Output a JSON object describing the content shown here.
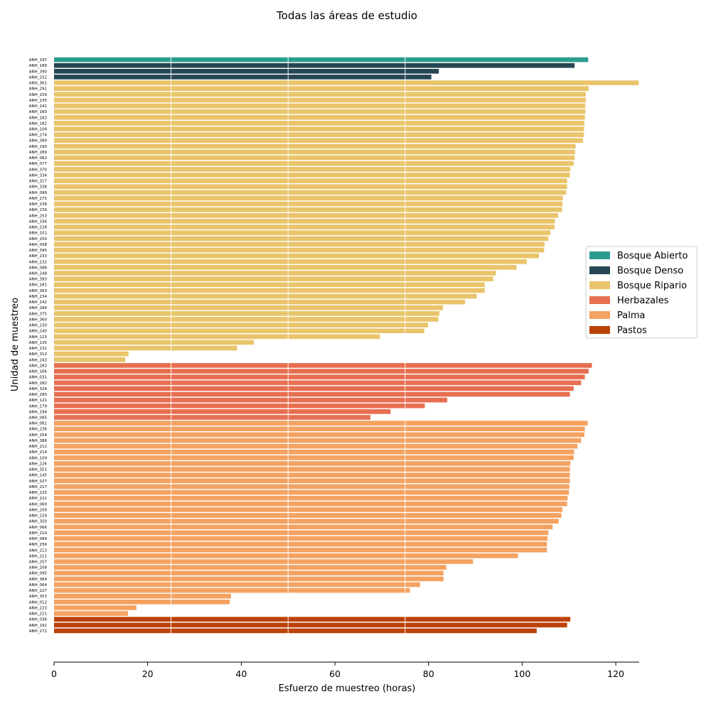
{
  "chart_data": {
    "type": "bar",
    "orientation": "horizontal",
    "title": "Todas las áreas de estudio",
    "xlabel": "Esfuerzo de muestreo (horas)",
    "ylabel": "Unidad de muestreo",
    "xlim": [
      0,
      125
    ],
    "xticks": [
      0,
      20,
      40,
      60,
      80,
      100,
      120
    ],
    "gridlines_x": [
      25,
      50,
      75
    ],
    "legend_position": "right",
    "groups": [
      {
        "name": "Bosque Abierto",
        "color": "#2a9d8f"
      },
      {
        "name": "Bosque Denso",
        "color": "#264653"
      },
      {
        "name": "Bosque Ripario",
        "color": "#e9c46a"
      },
      {
        "name": "Herbazales",
        "color": "#e76f51"
      },
      {
        "name": "Palma",
        "color": "#f4a261"
      },
      {
        "name": "Pastos",
        "color": "#bc4208"
      }
    ],
    "bars": [
      {
        "label": "ANH_197",
        "value": 114.1,
        "group": 0
      },
      {
        "label": "ANH_189",
        "value": 111.2,
        "group": 1
      },
      {
        "label": "ANH_390",
        "value": 82.2,
        "group": 1
      },
      {
        "label": "ANH_252",
        "value": 80.6,
        "group": 1
      },
      {
        "label": "ANH_361",
        "value": 124.9,
        "group": 2
      },
      {
        "label": "ANH_291",
        "value": 114.2,
        "group": 2
      },
      {
        "label": "ANH_159",
        "value": 113.6,
        "group": 2
      },
      {
        "label": "ANH_235",
        "value": 113.6,
        "group": 2
      },
      {
        "label": "ANH_241",
        "value": 113.5,
        "group": 2
      },
      {
        "label": "ANH_160",
        "value": 113.5,
        "group": 2
      },
      {
        "label": "ANH_183",
        "value": 113.4,
        "group": 2
      },
      {
        "label": "ANH_182",
        "value": 113.3,
        "group": 2
      },
      {
        "label": "ANH_106",
        "value": 113.2,
        "group": 2
      },
      {
        "label": "ANH_274",
        "value": 113.2,
        "group": 2
      },
      {
        "label": "ANH_389",
        "value": 113.0,
        "group": 2
      },
      {
        "label": "ANH_290",
        "value": 111.4,
        "group": 2
      },
      {
        "label": "ANH_289",
        "value": 111.3,
        "group": 2
      },
      {
        "label": "ANH_062",
        "value": 111.2,
        "group": 2
      },
      {
        "label": "ANH_077",
        "value": 111.0,
        "group": 2
      },
      {
        "label": "ANH_370",
        "value": 110.3,
        "group": 2
      },
      {
        "label": "ANH_334",
        "value": 110.2,
        "group": 2
      },
      {
        "label": "ANH_317",
        "value": 109.6,
        "group": 2
      },
      {
        "label": "ANH_338",
        "value": 109.6,
        "group": 2
      },
      {
        "label": "ANH_099",
        "value": 109.4,
        "group": 2
      },
      {
        "label": "ANH_275",
        "value": 108.7,
        "group": 2
      },
      {
        "label": "ANH_238",
        "value": 108.6,
        "group": 2
      },
      {
        "label": "ANH_239",
        "value": 108.5,
        "group": 2
      },
      {
        "label": "ANH_253",
        "value": 107.7,
        "group": 2
      },
      {
        "label": "ANH_336",
        "value": 107.0,
        "group": 2
      },
      {
        "label": "ANH_228",
        "value": 106.9,
        "group": 2
      },
      {
        "label": "ANH_101",
        "value": 106.0,
        "group": 2
      },
      {
        "label": "ANH_250",
        "value": 105.6,
        "group": 2
      },
      {
        "label": "ANH_058",
        "value": 104.8,
        "group": 2
      },
      {
        "label": "ANH_395",
        "value": 104.7,
        "group": 2
      },
      {
        "label": "ANH_233",
        "value": 103.6,
        "group": 2
      },
      {
        "label": "ANH_232",
        "value": 101.0,
        "group": 2
      },
      {
        "label": "ANH_088",
        "value": 98.8,
        "group": 2
      },
      {
        "label": "ANH_248",
        "value": 94.4,
        "group": 2
      },
      {
        "label": "ANH_393",
        "value": 93.8,
        "group": 2
      },
      {
        "label": "ANH_181",
        "value": 92.0,
        "group": 2
      },
      {
        "label": "ANH_363",
        "value": 92.0,
        "group": 2
      },
      {
        "label": "ANH_234",
        "value": 90.3,
        "group": 2
      },
      {
        "label": "ANH_242",
        "value": 87.8,
        "group": 2
      },
      {
        "label": "ANH_284",
        "value": 83.1,
        "group": 2
      },
      {
        "label": "ANH_375",
        "value": 82.3,
        "group": 2
      },
      {
        "label": "ANH_360",
        "value": 82.1,
        "group": 2
      },
      {
        "label": "ANH_230",
        "value": 79.9,
        "group": 2
      },
      {
        "label": "ANH_240",
        "value": 79.1,
        "group": 2
      },
      {
        "label": "ANH_215",
        "value": 69.6,
        "group": 2
      },
      {
        "label": "ANH_135",
        "value": 42.7,
        "group": 2
      },
      {
        "label": "ANH_231",
        "value": 39.1,
        "group": 2
      },
      {
        "label": "ANH_312",
        "value": 15.9,
        "group": 2
      },
      {
        "label": "ANH_243",
        "value": 15.2,
        "group": 2
      },
      {
        "label": "ANH_283",
        "value": 114.9,
        "group": 3
      },
      {
        "label": "ANH_166",
        "value": 114.2,
        "group": 3
      },
      {
        "label": "ANH_031",
        "value": 113.4,
        "group": 3
      },
      {
        "label": "ANH_282",
        "value": 112.6,
        "group": 3
      },
      {
        "label": "ANH_324",
        "value": 111.0,
        "group": 3
      },
      {
        "label": "ANH_280",
        "value": 110.2,
        "group": 3
      },
      {
        "label": "ANH_121",
        "value": 84.0,
        "group": 3
      },
      {
        "label": "ANH_279",
        "value": 79.2,
        "group": 3
      },
      {
        "label": "ANH_194",
        "value": 71.9,
        "group": 3
      },
      {
        "label": "ANH_085",
        "value": 67.6,
        "group": 3
      },
      {
        "label": "ANH_081",
        "value": 114.0,
        "group": 4
      },
      {
        "label": "ANH_236",
        "value": 113.4,
        "group": 4
      },
      {
        "label": "ANH_254",
        "value": 113.3,
        "group": 4
      },
      {
        "label": "ANH_388",
        "value": 112.6,
        "group": 4
      },
      {
        "label": "ANH_212",
        "value": 111.8,
        "group": 4
      },
      {
        "label": "ANH_214",
        "value": 111.1,
        "group": 4
      },
      {
        "label": "ANH_109",
        "value": 111.0,
        "group": 4
      },
      {
        "label": "ANH_226",
        "value": 110.3,
        "group": 4
      },
      {
        "label": "ANH_351",
        "value": 110.2,
        "group": 4
      },
      {
        "label": "ANH_145",
        "value": 110.2,
        "group": 4
      },
      {
        "label": "ANH_327",
        "value": 110.2,
        "group": 4
      },
      {
        "label": "ANH_217",
        "value": 110.1,
        "group": 4
      },
      {
        "label": "ANH_225",
        "value": 110.0,
        "group": 4
      },
      {
        "label": "ANH_222",
        "value": 109.7,
        "group": 4
      },
      {
        "label": "ANH_069",
        "value": 109.6,
        "group": 4
      },
      {
        "label": "ANH_209",
        "value": 108.6,
        "group": 4
      },
      {
        "label": "ANH_229",
        "value": 108.4,
        "group": 4
      },
      {
        "label": "ANH_350",
        "value": 107.8,
        "group": 4
      },
      {
        "label": "ANH_066",
        "value": 106.5,
        "group": 4
      },
      {
        "label": "ANH_210",
        "value": 105.6,
        "group": 4
      },
      {
        "label": "ANH_089",
        "value": 105.4,
        "group": 4
      },
      {
        "label": "ANH_256",
        "value": 105.3,
        "group": 4
      },
      {
        "label": "ANH_213",
        "value": 105.3,
        "group": 4
      },
      {
        "label": "ANH_211",
        "value": 99.1,
        "group": 4
      },
      {
        "label": "ANH_257",
        "value": 89.5,
        "group": 4
      },
      {
        "label": "ANH_208",
        "value": 83.8,
        "group": 4
      },
      {
        "label": "ANH_095",
        "value": 83.2,
        "group": 4
      },
      {
        "label": "ANH_364",
        "value": 83.2,
        "group": 4
      },
      {
        "label": "ANH_064",
        "value": 78.2,
        "group": 4
      },
      {
        "label": "ANH_227",
        "value": 76.0,
        "group": 4
      },
      {
        "label": "ANH_353",
        "value": 37.8,
        "group": 4
      },
      {
        "label": "ANH_012",
        "value": 37.5,
        "group": 4
      },
      {
        "label": "ANH_223",
        "value": 17.6,
        "group": 4
      },
      {
        "label": "ANH_221",
        "value": 15.8,
        "group": 4
      },
      {
        "label": "ANH_038",
        "value": 110.3,
        "group": 5
      },
      {
        "label": "ANH_192",
        "value": 109.6,
        "group": 5
      },
      {
        "label": "ANH_272",
        "value": 103.1,
        "group": 5
      }
    ]
  }
}
